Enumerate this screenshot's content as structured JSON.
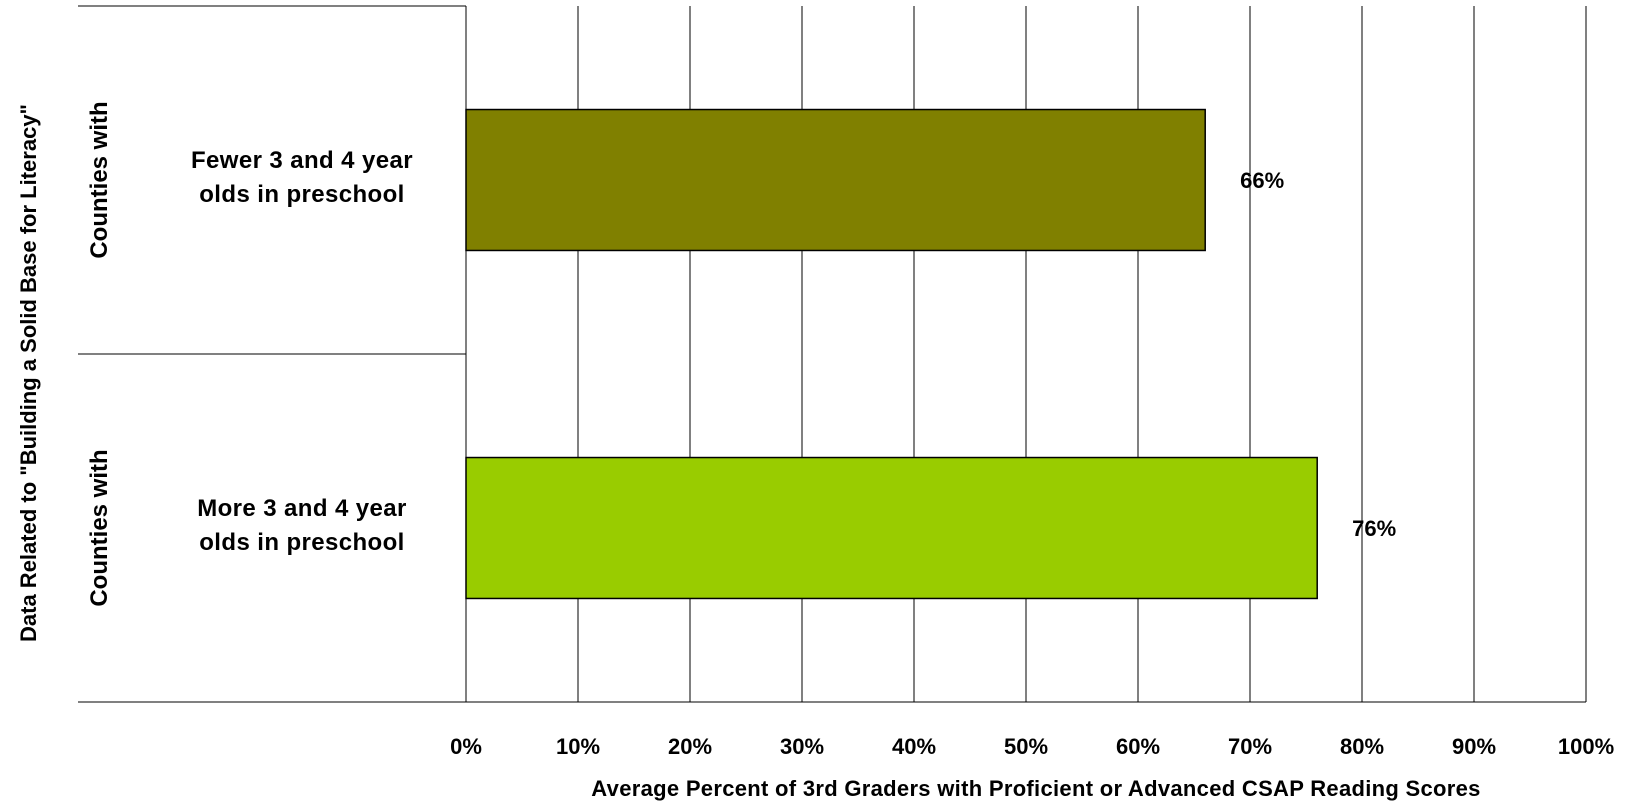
{
  "chart_data": {
    "type": "bar",
    "orientation": "horizontal",
    "title": "",
    "ylabel": "Data Related to \"Building a Solid Base for Literacy\"",
    "xlabel": "Average Percent of 3rd Graders with Proficient or Advanced CSAP Reading Scores",
    "group_label": "Counties with",
    "categories": [
      "Fewer 3 and 4 year olds in preschool",
      "More 3 and 4 year olds in preschool"
    ],
    "values": [
      66,
      76
    ],
    "data_labels": [
      "66%",
      "76%"
    ],
    "bar_colors": [
      "#808000",
      "#99CC00"
    ],
    "xlim": [
      0,
      100
    ],
    "xticks": [
      0,
      10,
      20,
      30,
      40,
      50,
      60,
      70,
      80,
      90,
      100
    ],
    "xtick_labels": [
      "0%",
      "10%",
      "20%",
      "30%",
      "40%",
      "50%",
      "60%",
      "70%",
      "80%",
      "90%",
      "100%"
    ],
    "grid": true,
    "legend": "none"
  }
}
